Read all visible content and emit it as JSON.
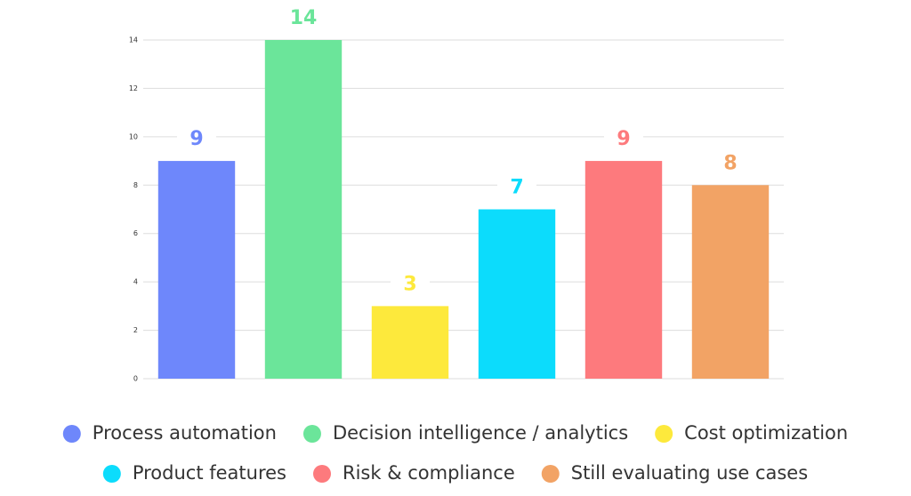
{
  "chart_data": {
    "type": "bar",
    "categories": [
      "Process automation",
      "Decision intelligence / analytics",
      "Cost optimization",
      "Product features",
      "Risk & compliance",
      "Still evaluating use cases"
    ],
    "values": [
      9,
      14,
      3,
      7,
      9,
      8
    ],
    "colors": [
      "#6e87fb",
      "#6be59a",
      "#fde93c",
      "#0cdcfc",
      "#fd7a7d",
      "#f2a365"
    ],
    "ylim": [
      0,
      14
    ],
    "yticks": [
      0,
      2,
      4,
      6,
      8,
      10,
      12,
      14
    ],
    "grid": true
  }
}
